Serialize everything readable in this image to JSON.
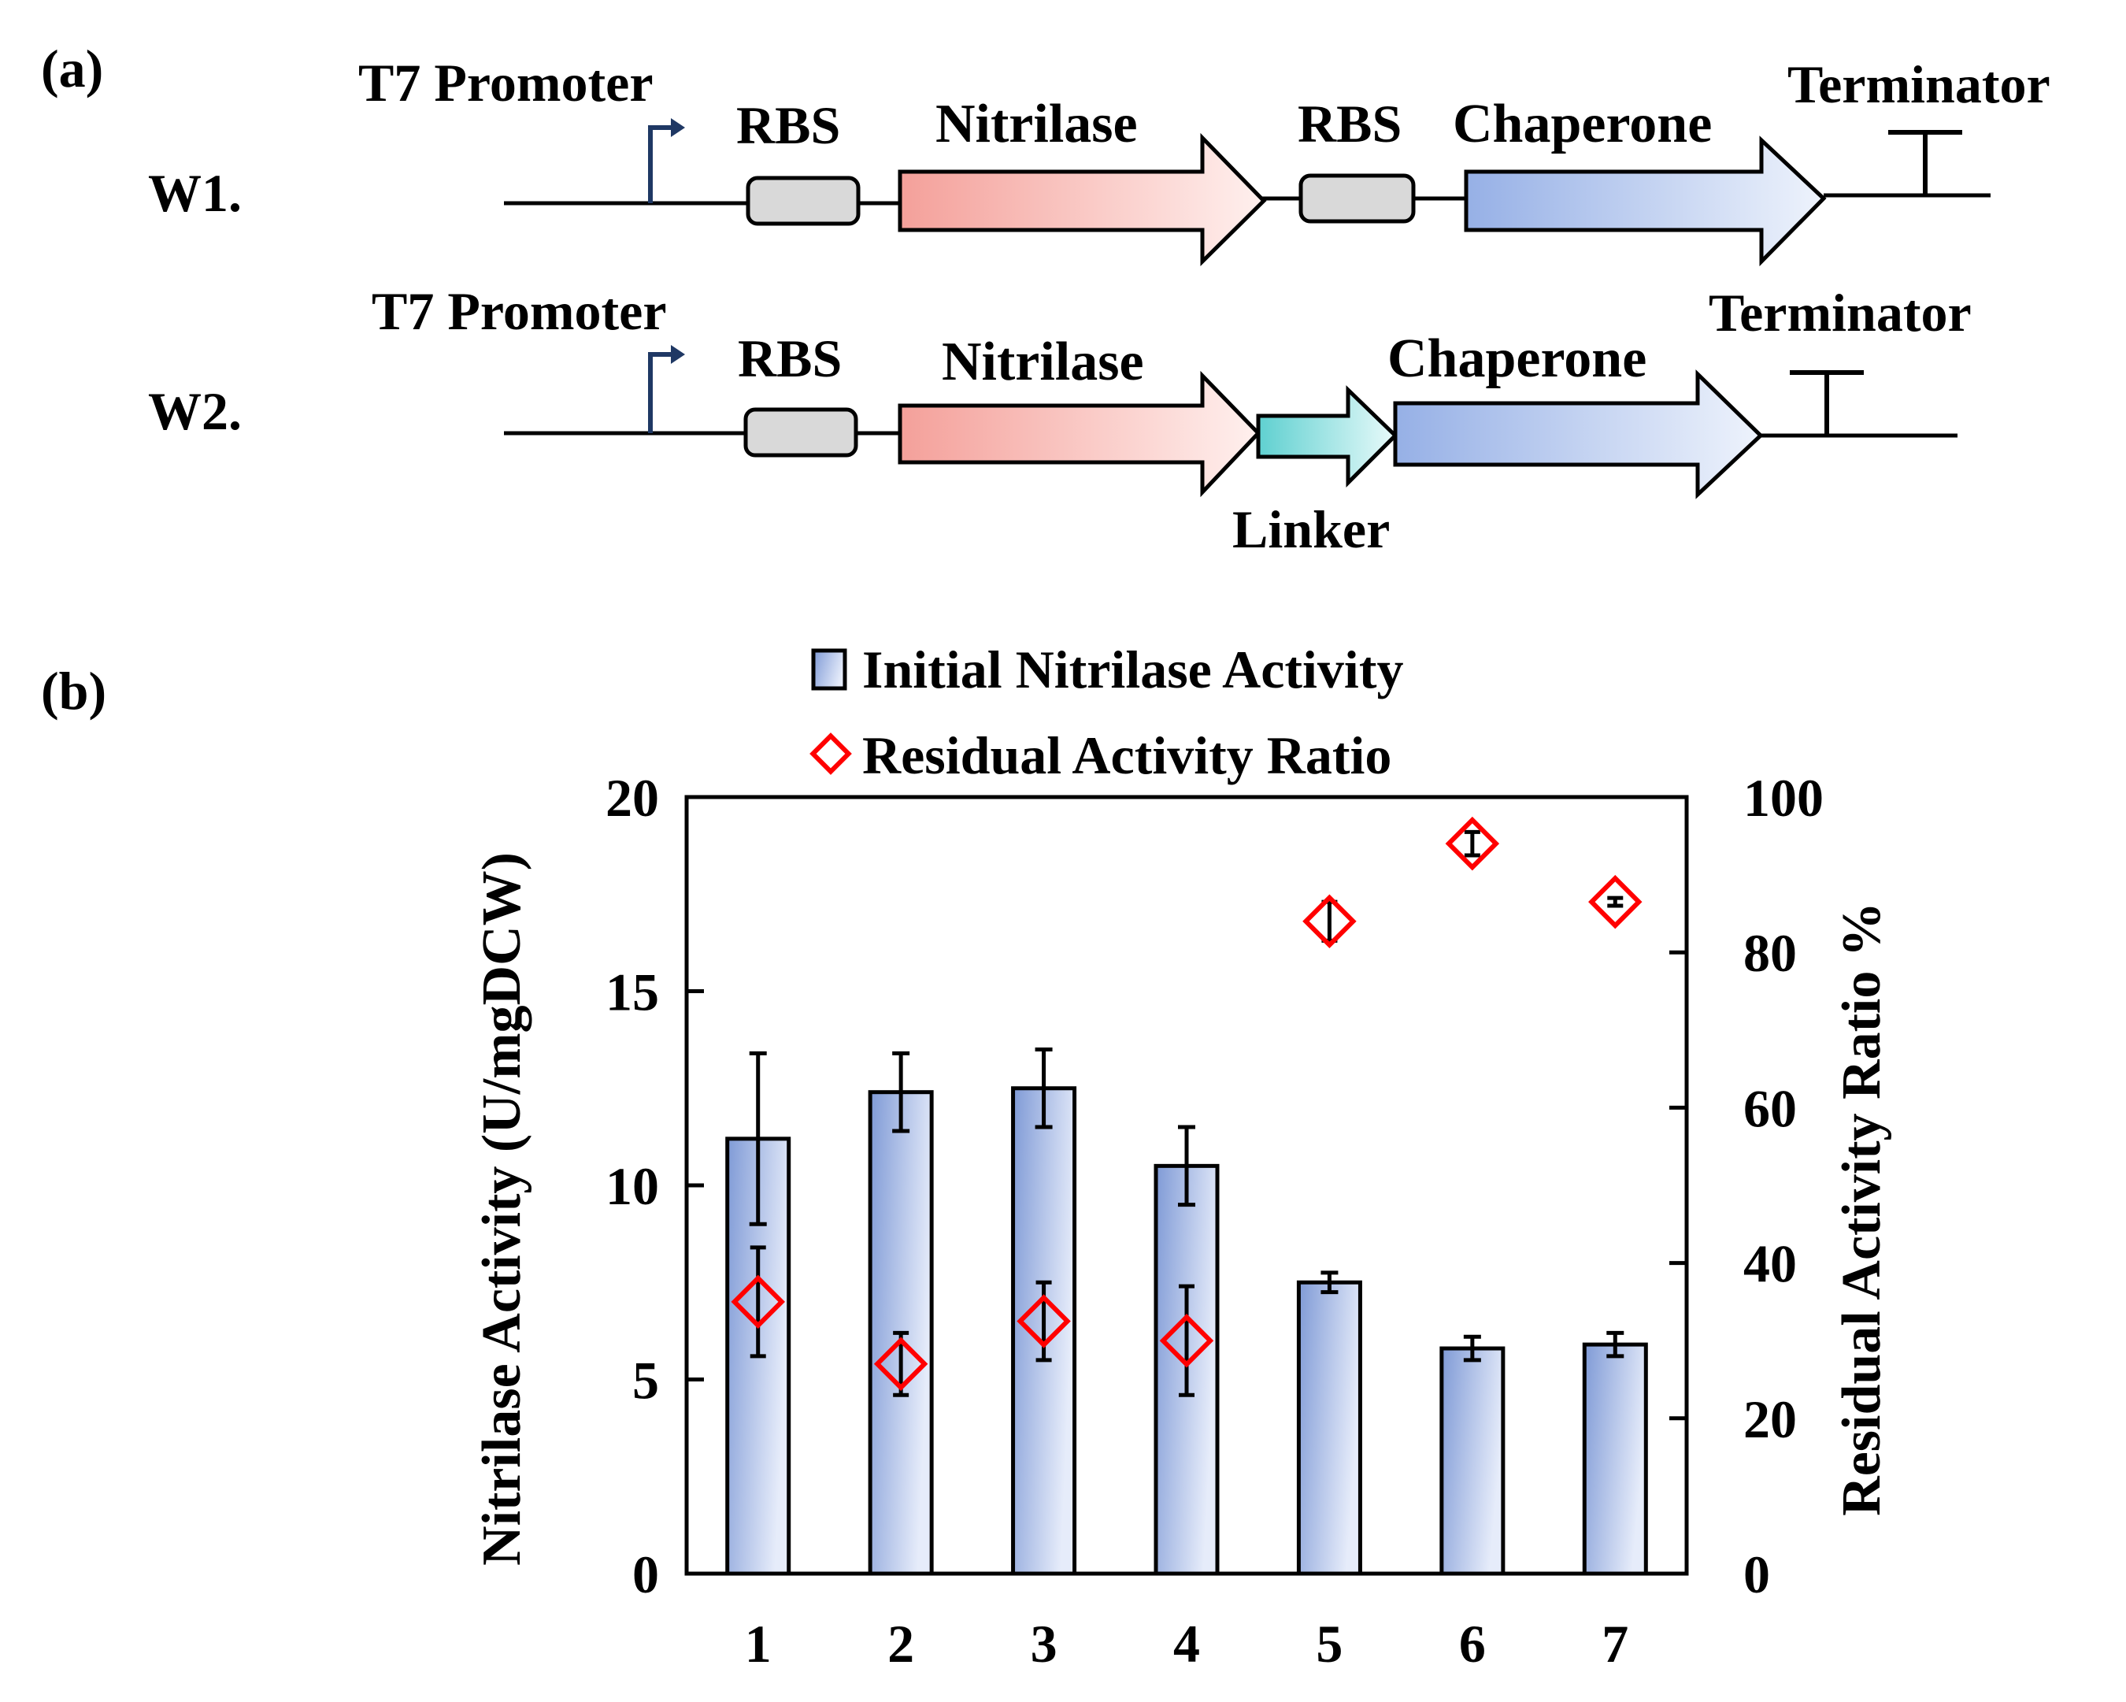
{
  "panel_a": {
    "label": "(a)",
    "constructs": [
      {
        "name": "W1.",
        "promoter_label": "T7 Promoter",
        "rbs1_label": "RBS",
        "gene1_label": "Nitrilase",
        "rbs2_label": "RBS",
        "gene2_label": "Chaperone",
        "terminator_label": "Terminator"
      },
      {
        "name": "W2.",
        "promoter_label": "T7 Promoter",
        "rbs1_label": "RBS",
        "gene1_label": "Nitrilase",
        "linker_label": "Linker",
        "gene2_label": "Chaperone",
        "terminator_label": "Terminator"
      }
    ]
  },
  "panel_b": {
    "label": "(b)"
  },
  "colors": {
    "bar_fill_start": "#7f9ad6",
    "bar_fill_end": "#e6ecfa",
    "marker": "#ff0000",
    "nitrilase_start": "#f4a09a",
    "nitrilase_end": "#fff0ee",
    "chaperone_start": "#96b0e6",
    "chaperone_end": "#eef3fc",
    "linker_start": "#5fd0d0",
    "linker_end": "#e8fafa",
    "rbs_fill": "#d9d9d9",
    "promoter": "#1f3864"
  },
  "chart_data": {
    "type": "bar",
    "categories": [
      "1",
      "2",
      "3",
      "4",
      "5",
      "6",
      "7"
    ],
    "series": [
      {
        "name": "Initial Nitrilase Activity",
        "axis": "left",
        "type": "bar",
        "values": [
          11.2,
          12.4,
          12.5,
          10.5,
          7.5,
          5.8,
          5.9
        ],
        "errors": [
          2.2,
          1.0,
          1.0,
          1.0,
          0.25,
          0.3,
          0.3
        ]
      },
      {
        "name": "Residual Activity Ratio",
        "axis": "right",
        "type": "scatter",
        "marker": "diamond",
        "values": [
          35,
          27,
          32.5,
          30,
          84,
          94,
          86.5
        ],
        "errors": [
          7,
          4,
          5,
          7,
          2.5,
          1.5,
          0.5
        ]
      }
    ],
    "ylabel": "Nitrilase Activity (U/mgDCW)",
    "y2label": "Residual Activity Ratio %",
    "ylim": [
      0,
      20
    ],
    "yticks": [
      0,
      5,
      10,
      15,
      20
    ],
    "y2lim": [
      0,
      100
    ],
    "y2ticks": [
      0,
      20,
      40,
      60,
      80,
      100
    ],
    "legend": [
      "Initial Nitrilase Activity",
      "Residual Activity Ratio"
    ],
    "legend_position": "top-center",
    "grid": false
  }
}
